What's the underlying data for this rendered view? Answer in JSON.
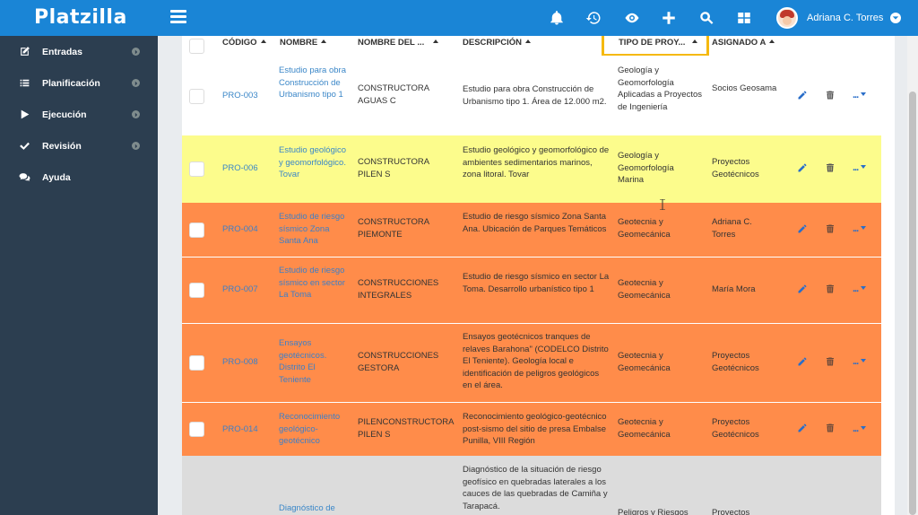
{
  "app": {
    "brand": "Platzilla"
  },
  "user": {
    "name": "Adriana C. Torres"
  },
  "topbar_icons": [
    "bell-icon",
    "history-icon",
    "eye-icon",
    "plus-icon",
    "search-icon",
    "grid-icon"
  ],
  "sidebar": {
    "items": [
      {
        "label": "Entradas",
        "icon": "edit-icon"
      },
      {
        "label": "Planificación",
        "icon": "list-icon"
      },
      {
        "label": "Ejecución",
        "icon": "play-icon"
      },
      {
        "label": "Revisión",
        "icon": "check-icon"
      },
      {
        "label": "Ayuda",
        "icon": "chat-icon"
      }
    ]
  },
  "table": {
    "columns": {
      "codigo": "CÓDIGO",
      "nombre": "NOMBRE",
      "nombre_del": "NOMBRE DEL ...",
      "descripcion": "DESCRIPCIÓN",
      "tipo": "TIPO DE PROY...",
      "asignado": "ASIGNADO A"
    },
    "more_label": "...",
    "rows": [
      {
        "code": "PRO-003",
        "name": "Estudio para obra Construcción de Urbanismo tipo 1",
        "client": "CONSTRUCTORA AGUAS C",
        "description": "Estudio para obra Construcción de Urbanismo tipo 1. Área de 12.000 m2.",
        "type": "Geología y Geomorfología Aplicadas a Proyectos de Ingeniería",
        "assigned": "Socios Geosama",
        "color": "white"
      },
      {
        "code": "PRO-006",
        "name": "Estudio geológico y geomorfológico. Tovar",
        "client": "CONSTRUCTORA PILEN S",
        "description": "Estudio geológico y geomorfológico de ambientes sedimentarios marinos, zona litoral. Tovar",
        "type": "Geología y Geomorfología Marina",
        "assigned": "Proyectos Geotécnicos",
        "color": "yellow"
      },
      {
        "code": "PRO-004",
        "name": "Estudio de riesgo sísmico Zona Santa Ana",
        "client": "CONSTRUCTORA PIEMONTE",
        "description": "Estudio de riesgo sísmico Zona Santa Ana. Ubicación de Parques Temáticos",
        "type": "Geotecnia y Geomecánica",
        "assigned": "Adriana C. Torres",
        "color": "orange"
      },
      {
        "code": "PRO-007",
        "name": "Estudio de riesgo sísmico en sector La Toma",
        "client": "CONSTRUCCIONES INTEGRALES",
        "description": "Estudio de riesgo sísmico en sector La Toma. Desarrollo urbanístico tipo 1",
        "type": "Geotecnia y Geomecánica",
        "assigned": "María Mora",
        "color": "orange"
      },
      {
        "code": "PRO-008",
        "name": "Ensayos geotécnicos. Distrito El Teniente",
        "client": "CONSTRUCCIONES GESTORA",
        "description": "Ensayos geotécnicos tranques de relaves Barahona\" (CODELCO Distrito El Teniente). Geología local e identificación de peligros geológicos en el área.",
        "type": "Geotecnia y Geomecánica",
        "assigned": "Proyectos Geotécnicos",
        "color": "orange"
      },
      {
        "code": "PRO-014",
        "name": "Reconocimiento geológico-geotécnico",
        "client": "PILENCONSTRUCTORA PILEN S",
        "description": "Reconocimiento geológico-geotécnico post-sismo del sitio de presa Embalse Punilla, VIII Región",
        "type": "Geotecnia y Geomecánica",
        "assigned": "Proyectos Geotécnicos",
        "color": "orange"
      },
      {
        "code": "",
        "name": "Diagnóstico de",
        "client": "",
        "description": "Diagnóstico de la situación de riesgo geofísico en quebradas laterales a los cauces de las quebradas de Camiña y Tarapacá.",
        "type": "Peligros y Riesgos",
        "assigned": "Proyectos",
        "color": "grey"
      }
    ]
  },
  "colors": {
    "topbar": "#1a85d6",
    "sidebar": "#2c3e50",
    "row_yellow": "#fcfc8c",
    "row_orange": "#ff8c4a",
    "row_grey": "#dcdcdc",
    "highlight": "#f5b90f",
    "link": "#3b87c8"
  }
}
